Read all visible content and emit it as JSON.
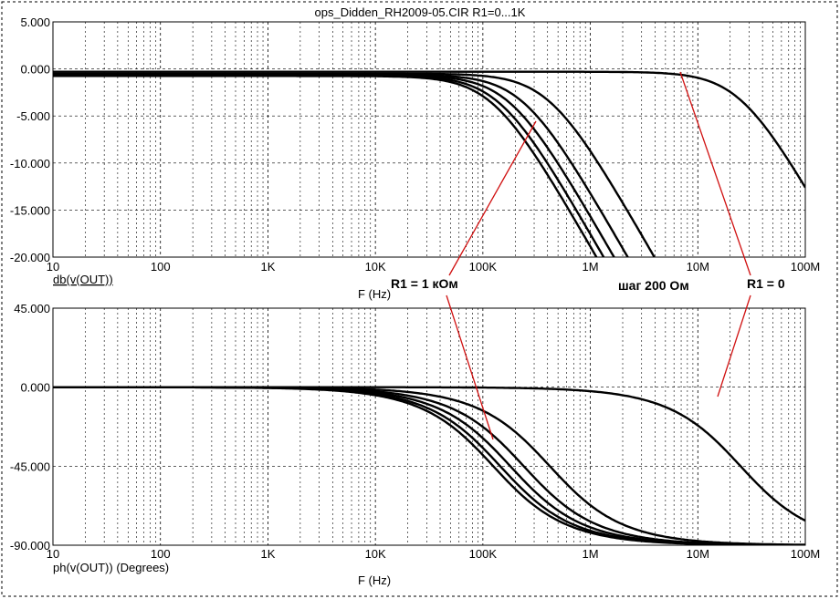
{
  "title": "ops_Didden_RH2009-05.CIR R1=0...1K",
  "chart_data": [
    {
      "type": "line",
      "xscale": "log",
      "xlabel": "F (Hz)",
      "ylabel": "db(v(OUT))",
      "xlim": [
        10,
        100000000
      ],
      "ylim": [
        -20,
        5
      ],
      "x_ticks": [
        "10",
        "100",
        "1K",
        "10K",
        "100K",
        "1M",
        "10M",
        "100M"
      ],
      "y_ticks": [
        "5.000",
        "0.000",
        "-5.000",
        "-10.000",
        "-15.000",
        "-20.000"
      ],
      "y_tick_values": [
        5,
        0,
        -5,
        -10,
        -15,
        -20
      ],
      "grid": true,
      "series": [
        {
          "f0": 25000000,
          "lf": -0.3
        },
        {
          "f0": 420000,
          "lf": -0.5
        },
        {
          "f0": 240000,
          "lf": -0.6
        },
        {
          "f0": 180000,
          "lf": -0.65
        },
        {
          "f0": 145000,
          "lf": -0.7
        },
        {
          "f0": 125000,
          "lf": -0.75
        }
      ]
    },
    {
      "type": "line",
      "xscale": "log",
      "xlabel": "F (Hz)",
      "ylabel": "ph(v(OUT)) (Degrees)",
      "xlim": [
        10,
        100000000
      ],
      "ylim": [
        -90,
        45
      ],
      "x_ticks": [
        "10",
        "100",
        "1K",
        "10K",
        "100K",
        "1M",
        "10M",
        "100M"
      ],
      "y_ticks": [
        "45.000",
        "0.000",
        "-45.000",
        "-90.000"
      ],
      "y_tick_values": [
        45,
        0,
        -45,
        -90
      ],
      "grid": true,
      "series": [
        {
          "f0": 25000000,
          "lf": 0
        },
        {
          "f0": 420000,
          "lf": 0
        },
        {
          "f0": 240000,
          "lf": 0
        },
        {
          "f0": 180000,
          "lf": 0
        },
        {
          "f0": 145000,
          "lf": 0
        },
        {
          "f0": 125000,
          "lf": 0
        }
      ]
    }
  ],
  "annotations": {
    "r1_1k": "R1 = 1 кОм",
    "step": "шаг 200 Ом",
    "r1_0": "R1 = 0"
  },
  "colors": {
    "curve": "#000000",
    "grid": "#000000",
    "annotation_line": "#d01010"
  }
}
